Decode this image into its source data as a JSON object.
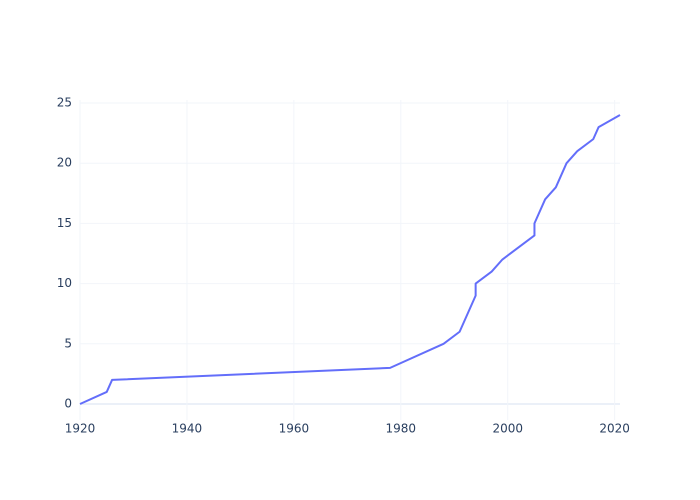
{
  "chart_data": {
    "type": "line",
    "x": [
      1920,
      1925,
      1926,
      1978,
      1988,
      1991,
      1994,
      1994,
      1997,
      1999,
      2005,
      2005,
      2007,
      2009,
      2011,
      2013,
      2016,
      2017,
      2021
    ],
    "values": [
      0,
      1,
      2,
      3,
      5,
      6,
      9,
      10,
      11,
      12,
      14,
      15,
      17,
      18,
      20,
      21,
      22,
      23,
      24
    ],
    "color": "#636efa",
    "xlim": [
      1920,
      2021
    ],
    "xticks": [
      1920,
      1940,
      1960,
      1980,
      2000,
      2020
    ],
    "ylim": [
      -1.33,
      25.25
    ],
    "yticks": [
      0,
      5,
      10,
      15,
      20,
      25
    ],
    "grid": true
  }
}
